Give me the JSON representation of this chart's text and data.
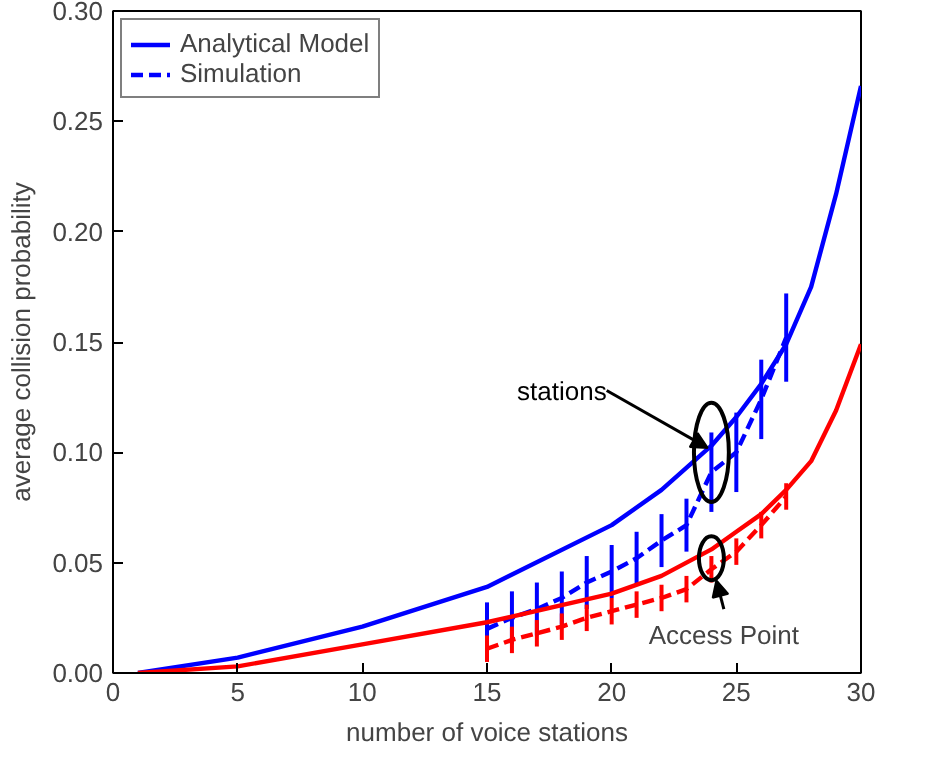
{
  "chart_data": {
    "type": "line",
    "xlabel": "number of voice stations",
    "ylabel": "average collision probability",
    "xlim": [
      0,
      30
    ],
    "ylim": [
      0,
      0.3
    ],
    "xticks": [
      0,
      5,
      10,
      15,
      20,
      25,
      30
    ],
    "yticks": [
      {
        "value": 0,
        "label": "0.00"
      },
      {
        "value": 0.05,
        "label": "0.05"
      },
      {
        "value": 0.1,
        "label": "0.10"
      },
      {
        "value": 0.15,
        "label": "0.15"
      },
      {
        "value": 0.2,
        "label": "0.20"
      },
      {
        "value": 0.25,
        "label": "0.25"
      },
      {
        "value": 0.3,
        "label": "0.30"
      }
    ],
    "grid": false,
    "legend": "top left",
    "marker": "none",
    "series": [
      {
        "name": "Analytical Model",
        "color": "#0000ff",
        "line_style": "solid",
        "x": [
          1,
          5,
          10,
          15,
          20,
          22,
          24,
          25,
          26,
          27,
          28,
          29,
          30
        ],
        "values": [
          0,
          0.007,
          0.021,
          0.039,
          0.067,
          0.083,
          0.103,
          0.116,
          0.131,
          0.149,
          0.175,
          0.217,
          0.266
        ]
      },
      {
        "name": "Simulation",
        "color": "#0000ff",
        "line_style": "dashed",
        "x": [
          15,
          16,
          17,
          18,
          19,
          20,
          21,
          22,
          23,
          24,
          25,
          26,
          27
        ],
        "values": [
          0.02,
          0.025,
          0.029,
          0.034,
          0.041,
          0.046,
          0.052,
          0.06,
          0.067,
          0.091,
          0.1,
          0.124,
          0.152
        ],
        "errors": [
          0.012,
          0.012,
          0.012,
          0.012,
          0.012,
          0.012,
          0.012,
          0.012,
          0.012,
          0.018,
          0.018,
          0.018,
          0.02
        ]
      },
      {
        "color": "#ff0000",
        "line_style": "solid",
        "x": [
          1,
          5,
          10,
          15,
          20,
          22,
          24,
          25,
          26,
          27,
          28,
          29,
          30
        ],
        "values": [
          0,
          0.003,
          0.013,
          0.023,
          0.036,
          0.044,
          0.056,
          0.064,
          0.072,
          0.083,
          0.096,
          0.119,
          0.149
        ]
      },
      {
        "color": "#ff0000",
        "line_style": "dashed",
        "x": [
          15,
          16,
          17,
          18,
          19,
          20,
          21,
          22,
          23,
          24,
          25,
          26,
          27
        ],
        "values": [
          0.011,
          0.015,
          0.018,
          0.021,
          0.025,
          0.028,
          0.031,
          0.034,
          0.038,
          0.047,
          0.055,
          0.067,
          0.08
        ],
        "errors": [
          0.006,
          0.006,
          0.006,
          0.006,
          0.006,
          0.006,
          0.006,
          0.006,
          0.006,
          0.006,
          0.006,
          0.006,
          0.006
        ]
      }
    ],
    "annotations": [
      {
        "text": "stations",
        "x": 24,
        "y": 0.1
      },
      {
        "text": "Access Point",
        "x": 24,
        "y": 0.052
      }
    ]
  }
}
